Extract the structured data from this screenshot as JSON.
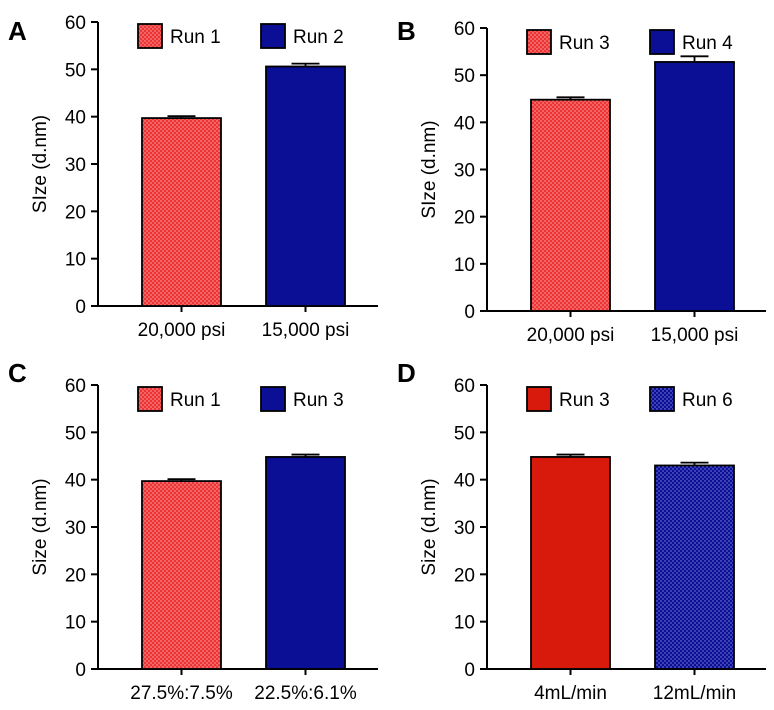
{
  "colors": {
    "red": "#ed3333",
    "red_dot": "#f4a5a5",
    "red_solid": "#d71a0b",
    "blue": "#0b0f96",
    "blue_dot": "#7a7fd6",
    "axis": "#000000"
  },
  "chart_data": [
    {
      "panel": "A",
      "type": "bar",
      "ylabel": "SIze (d.nm)",
      "ylim": [
        0,
        60
      ],
      "yticks": [
        0,
        10,
        20,
        30,
        40,
        50,
        60
      ],
      "categories": [
        "20,000 psi",
        "15,000 psi"
      ],
      "series": [
        {
          "name": "Run 1",
          "value": 39.7,
          "error": 0.4,
          "color": "red",
          "pattern": "dots"
        },
        {
          "name": "Run 2",
          "value": 50.6,
          "error": 0.6,
          "color": "blue",
          "pattern": "solid"
        }
      ],
      "legend": [
        "Run 1",
        "Run 2"
      ]
    },
    {
      "panel": "B",
      "type": "bar",
      "ylabel": "SIze (d.nm)",
      "ylim": [
        0,
        60
      ],
      "yticks": [
        0,
        10,
        20,
        30,
        40,
        50,
        60
      ],
      "categories": [
        "20,000 psi",
        "15,000 psi"
      ],
      "series": [
        {
          "name": "Run 3",
          "value": 44.8,
          "error": 0.5,
          "color": "red",
          "pattern": "dots"
        },
        {
          "name": "Run 4",
          "value": 52.8,
          "error": 1.2,
          "color": "blue",
          "pattern": "solid"
        }
      ],
      "legend": [
        "Run 3",
        "Run 4"
      ]
    },
    {
      "panel": "C",
      "type": "bar",
      "ylabel": "Size (d.nm)",
      "ylim": [
        0,
        60
      ],
      "yticks": [
        0,
        10,
        20,
        30,
        40,
        50,
        60
      ],
      "categories": [
        "27.5%:7.5%",
        "22.5%:6.1%"
      ],
      "series": [
        {
          "name": "Run 1",
          "value": 39.7,
          "error": 0.4,
          "color": "red",
          "pattern": "dots"
        },
        {
          "name": "Run 3",
          "value": 44.8,
          "error": 0.5,
          "color": "blue",
          "pattern": "solid"
        }
      ],
      "legend": [
        "Run 1",
        "Run 3"
      ]
    },
    {
      "panel": "D",
      "type": "bar",
      "ylabel": "Size (d.nm)",
      "ylim": [
        0,
        60
      ],
      "yticks": [
        0,
        10,
        20,
        30,
        40,
        50,
        60
      ],
      "categories": [
        "4mL/min",
        "12mL/min"
      ],
      "series": [
        {
          "name": "Run 3",
          "value": 44.8,
          "error": 0.5,
          "color": "red_solid",
          "pattern": "solid"
        },
        {
          "name": "Run 6",
          "value": 43.0,
          "error": 0.6,
          "color": "blue",
          "pattern": "dots"
        }
      ],
      "legend": [
        "Run 3",
        "Run 6"
      ]
    }
  ]
}
